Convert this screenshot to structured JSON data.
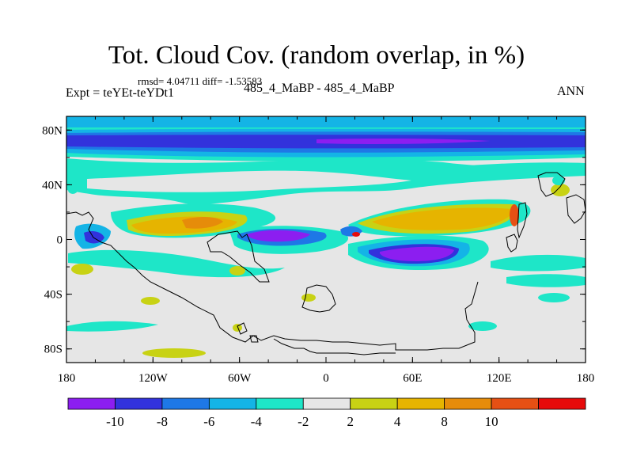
{
  "title": "Tot. Cloud Cov. (random overlap, in %)",
  "stats": "rmsd= 4.04711 diff= -1.53583",
  "expt": "Expt = teYEt-teYDt1",
  "cases": "485_4_MaBP - 485_4_MaBP",
  "season": "ANN",
  "chart_data": {
    "type": "heatmap",
    "title": "Tot. Cloud Cov. (random overlap, in %)",
    "x_ticks": [
      "180",
      "120W",
      "60W",
      "0",
      "60E",
      "120E",
      "180"
    ],
    "y_ticks": [
      "80N",
      "40N",
      "0",
      "40S",
      "80S"
    ],
    "xlim": [
      -180,
      180
    ],
    "ylim": [
      -90,
      90
    ],
    "colorbar": {
      "levels": [
        -10,
        -8,
        -6,
        -4,
        -2,
        2,
        4,
        8,
        10
      ],
      "tick_labels": [
        "-10",
        "-8",
        "-6",
        "-4",
        "-2",
        "2",
        "4",
        "8",
        "10"
      ],
      "colors": [
        "#8c1ef0",
        "#3232dc",
        "#1e78e6",
        "#14b4e6",
        "#1ee6c8",
        "#e6e6e6",
        "#c8d214",
        "#e6b400",
        "#e68c0a",
        "#e65014",
        "#e60a0a"
      ]
    },
    "features": [
      {
        "region": "50N-80N all longitudes",
        "value": -9
      },
      {
        "region": "30N-50N band",
        "value": -3
      },
      {
        "region": "0-10N, 150W-60W",
        "value": 6
      },
      {
        "region": "0-10N, 20E-130E",
        "value": 5
      },
      {
        "region": "10S-20S, 30E-100E",
        "value": -10
      },
      {
        "region": "0-10S, 60W-10W",
        "value": -10
      }
    ]
  }
}
